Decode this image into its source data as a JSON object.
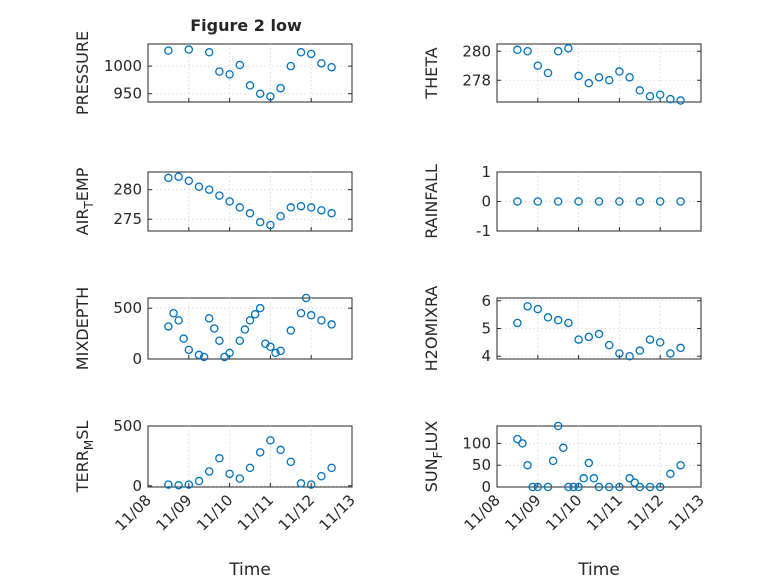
{
  "figure": {
    "title": "Figure 2 low",
    "xlabel": "Time",
    "x_ticks": [
      "11/08",
      "11/09",
      "11/10",
      "11/11",
      "11/12",
      "11/13"
    ],
    "marker_color": "#0072bd"
  },
  "chart_data": [
    {
      "type": "scatter",
      "marker": "circle",
      "ylabel": "PRESSURE",
      "ylabel_sub": "",
      "ylim": [
        935,
        1040
      ],
      "yticks": [
        "950",
        "1000"
      ],
      "ytick_values": [
        950,
        1000
      ],
      "xlim": [
        "11/08",
        "11/13"
      ],
      "x": [
        "11/08 12:00",
        "11/09 00:00",
        "11/09 12:00",
        "11/09 18:00",
        "11/10 00:00",
        "11/10 06:00",
        "11/10 12:00",
        "11/10 18:00",
        "11/11 00:00",
        "11/11 06:00",
        "11/11 12:00",
        "11/11 18:00",
        "11/12 00:00",
        "11/12 06:00",
        "11/12 12:00"
      ],
      "y": [
        1028,
        1030,
        1025,
        990,
        985,
        1002,
        965,
        950,
        945,
        960,
        1000,
        1025,
        1022,
        1005,
        998
      ]
    },
    {
      "type": "scatter",
      "marker": "circle",
      "ylabel": "THETA",
      "ylabel_sub": "",
      "ylim": [
        276.5,
        280.5
      ],
      "yticks": [
        "278",
        "280"
      ],
      "ytick_values": [
        278,
        280
      ],
      "xlim": [
        "11/08",
        "11/13"
      ],
      "x": [
        "11/08 12:00",
        "11/08 18:00",
        "11/09 00:00",
        "11/09 06:00",
        "11/09 12:00",
        "11/09 18:00",
        "11/10 00:00",
        "11/10 06:00",
        "11/10 12:00",
        "11/10 18:00",
        "11/11 00:00",
        "11/11 06:00",
        "11/11 12:00",
        "11/11 18:00",
        "11/12 00:00",
        "11/12 06:00",
        "11/12 12:00"
      ],
      "y": [
        280.1,
        280.0,
        279.0,
        278.5,
        280.0,
        280.2,
        278.3,
        277.8,
        278.2,
        278.0,
        278.6,
        278.2,
        277.3,
        276.9,
        277.0,
        276.7,
        276.6
      ]
    },
    {
      "type": "scatter",
      "marker": "circle",
      "ylabel": "AIR",
      "ylabel_sub": "T",
      "ylabel_post": "EMP",
      "ylim": [
        273,
        283
      ],
      "yticks": [
        "275",
        "280"
      ],
      "ytick_values": [
        275,
        280
      ],
      "xlim": [
        "11/08",
        "11/13"
      ],
      "x": [
        "11/08 12:00",
        "11/08 18:00",
        "11/09 00:00",
        "11/09 06:00",
        "11/09 12:00",
        "11/09 18:00",
        "11/10 00:00",
        "11/10 06:00",
        "11/10 12:00",
        "11/10 18:00",
        "11/11 00:00",
        "11/11 06:00",
        "11/11 12:00",
        "11/11 18:00",
        "11/12 00:00",
        "11/12 06:00",
        "11/12 12:00"
      ],
      "y": [
        282.0,
        282.2,
        281.5,
        280.5,
        280.0,
        279.0,
        278.0,
        277.0,
        276.0,
        274.5,
        274.0,
        275.5,
        277.0,
        277.2,
        277.0,
        276.5,
        276.0
      ]
    },
    {
      "type": "scatter",
      "marker": "circle",
      "ylabel": "RAINFALL",
      "ylabel_sub": "",
      "ylim": [
        -1,
        1
      ],
      "yticks": [
        "-1",
        "0",
        "1"
      ],
      "ytick_values": [
        -1,
        0,
        1
      ],
      "xlim": [
        "11/08",
        "11/13"
      ],
      "x": [
        "11/08 12:00",
        "11/09 00:00",
        "11/09 12:00",
        "11/10 00:00",
        "11/10 12:00",
        "11/11 00:00",
        "11/11 12:00",
        "11/12 00:00",
        "11/12 12:00"
      ],
      "y": [
        0,
        0,
        0,
        0,
        0,
        0,
        0,
        0,
        0
      ]
    },
    {
      "type": "scatter",
      "marker": "circle",
      "ylabel": "MIXDEPTH",
      "ylabel_sub": "",
      "ylim": [
        0,
        600
      ],
      "yticks": [
        "0",
        "500"
      ],
      "ytick_values": [
        0,
        500
      ],
      "xlim": [
        "11/08",
        "11/13"
      ],
      "x": [
        "11/08 12:00",
        "11/08 15:00",
        "11/08 18:00",
        "11/08 21:00",
        "11/09 00:00",
        "11/09 06:00",
        "11/09 09:00",
        "11/09 12:00",
        "11/09 15:00",
        "11/09 18:00",
        "11/09 21:00",
        "11/10 00:00",
        "11/10 06:00",
        "11/10 09:00",
        "11/10 12:00",
        "11/10 15:00",
        "11/10 18:00",
        "11/10 21:00",
        "11/11 00:00",
        "11/11 03:00",
        "11/11 06:00",
        "11/11 12:00",
        "11/11 18:00",
        "11/11 21:00",
        "11/12 00:00",
        "11/12 06:00",
        "11/12 12:00"
      ],
      "y": [
        320,
        450,
        380,
        200,
        90,
        40,
        20,
        400,
        300,
        180,
        20,
        60,
        180,
        290,
        380,
        440,
        500,
        150,
        120,
        60,
        80,
        280,
        450,
        600,
        430,
        380,
        340
      ]
    },
    {
      "type": "scatter",
      "marker": "circle",
      "ylabel": "H2OMIXRA",
      "ylabel_sub": "",
      "ylim": [
        3.9,
        6.1
      ],
      "yticks": [
        "4",
        "5",
        "6"
      ],
      "ytick_values": [
        4,
        5,
        6
      ],
      "xlim": [
        "11/08",
        "11/13"
      ],
      "x": [
        "11/08 12:00",
        "11/08 18:00",
        "11/09 00:00",
        "11/09 06:00",
        "11/09 12:00",
        "11/09 18:00",
        "11/10 00:00",
        "11/10 06:00",
        "11/10 12:00",
        "11/10 18:00",
        "11/11 00:00",
        "11/11 06:00",
        "11/11 12:00",
        "11/11 18:00",
        "11/12 00:00",
        "11/12 06:00",
        "11/12 12:00"
      ],
      "y": [
        5.2,
        5.8,
        5.7,
        5.4,
        5.3,
        5.2,
        4.6,
        4.7,
        4.8,
        4.4,
        4.1,
        4.0,
        4.2,
        4.6,
        4.5,
        4.1,
        4.3
      ]
    },
    {
      "type": "scatter",
      "marker": "circle",
      "ylabel": "TERR",
      "ylabel_sub": "M",
      "ylabel_post": "SL",
      "ylim": [
        -10,
        500
      ],
      "yticks": [
        "0",
        "500"
      ],
      "ytick_values": [
        0,
        500
      ],
      "xlim": [
        "11/08",
        "11/13"
      ],
      "x": [
        "11/08 12:00",
        "11/08 18:00",
        "11/09 00:00",
        "11/09 06:00",
        "11/09 12:00",
        "11/09 18:00",
        "11/10 00:00",
        "11/10 06:00",
        "11/10 12:00",
        "11/10 18:00",
        "11/11 00:00",
        "11/11 06:00",
        "11/11 12:00",
        "11/11 18:00",
        "11/12 00:00",
        "11/12 06:00",
        "11/12 12:00"
      ],
      "y": [
        10,
        5,
        10,
        40,
        120,
        230,
        100,
        60,
        150,
        280,
        380,
        300,
        200,
        20,
        10,
        80,
        150
      ]
    },
    {
      "type": "scatter",
      "marker": "circle",
      "ylabel": "SUN",
      "ylabel_sub": "F",
      "ylabel_post": "LUX",
      "ylim": [
        0,
        140
      ],
      "yticks": [
        "0",
        "50",
        "100"
      ],
      "ytick_values": [
        0,
        50,
        100
      ],
      "xlim": [
        "11/08",
        "11/13"
      ],
      "x": [
        "11/08 12:00",
        "11/08 15:00",
        "11/08 18:00",
        "11/08 21:00",
        "11/09 00:00",
        "11/09 06:00",
        "11/09 09:00",
        "11/09 12:00",
        "11/09 15:00",
        "11/09 18:00",
        "11/09 21:00",
        "11/10 00:00",
        "11/10 03:00",
        "11/10 06:00",
        "11/10 09:00",
        "11/10 12:00",
        "11/10 18:00",
        "11/11 00:00",
        "11/11 06:00",
        "11/11 09:00",
        "11/11 12:00",
        "11/11 18:00",
        "11/12 00:00",
        "11/12 06:00",
        "11/12 12:00"
      ],
      "y": [
        110,
        100,
        50,
        0,
        0,
        0,
        60,
        140,
        90,
        0,
        0,
        0,
        20,
        55,
        20,
        0,
        0,
        0,
        20,
        10,
        0,
        0,
        0,
        30,
        50
      ]
    }
  ]
}
